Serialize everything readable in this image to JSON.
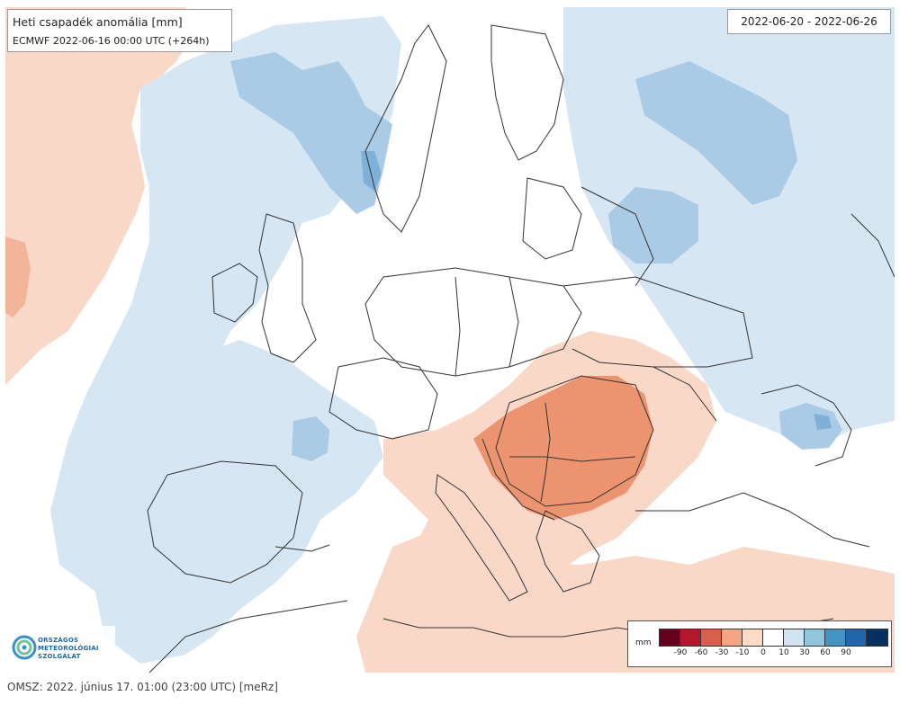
{
  "map": {
    "title": "Heti csapadék anomália [mm]",
    "subtitle": "ECMWF 2022-06-16 00:00 UTC (+264h)",
    "date_range": "2022-06-20 - 2022-06-26",
    "colors": {
      "land": "#ffffff",
      "ocean_anomaly_light_red": "#fad8c8",
      "light_blue": "#d6e6f3",
      "mid_blue": "#a9cbe6",
      "strong_blue": "#7fb1d8",
      "mid_red": "#f4b49a",
      "strong_red": "#ec9470",
      "borders": "#333333"
    }
  },
  "legend": {
    "unit": "mm",
    "colors": [
      "#67001f",
      "#b2182b",
      "#d6604d",
      "#f4a582",
      "#fddbc7",
      "#ffffff",
      "#d1e5f0",
      "#92c5de",
      "#4393c3",
      "#2166ac",
      "#053061"
    ],
    "ticks": [
      "-90",
      "-60",
      "-30",
      "-10",
      "0",
      "10",
      "30",
      "60",
      "90"
    ]
  },
  "logo": {
    "lines": [
      "ORSZÁGOS",
      "METEOROLÓGIAI",
      "SZOLGÁLAT"
    ]
  },
  "footer": {
    "text": "OMSZ: 2022. június 17. 01:00 (23:00 UTC)  [meRz]"
  }
}
